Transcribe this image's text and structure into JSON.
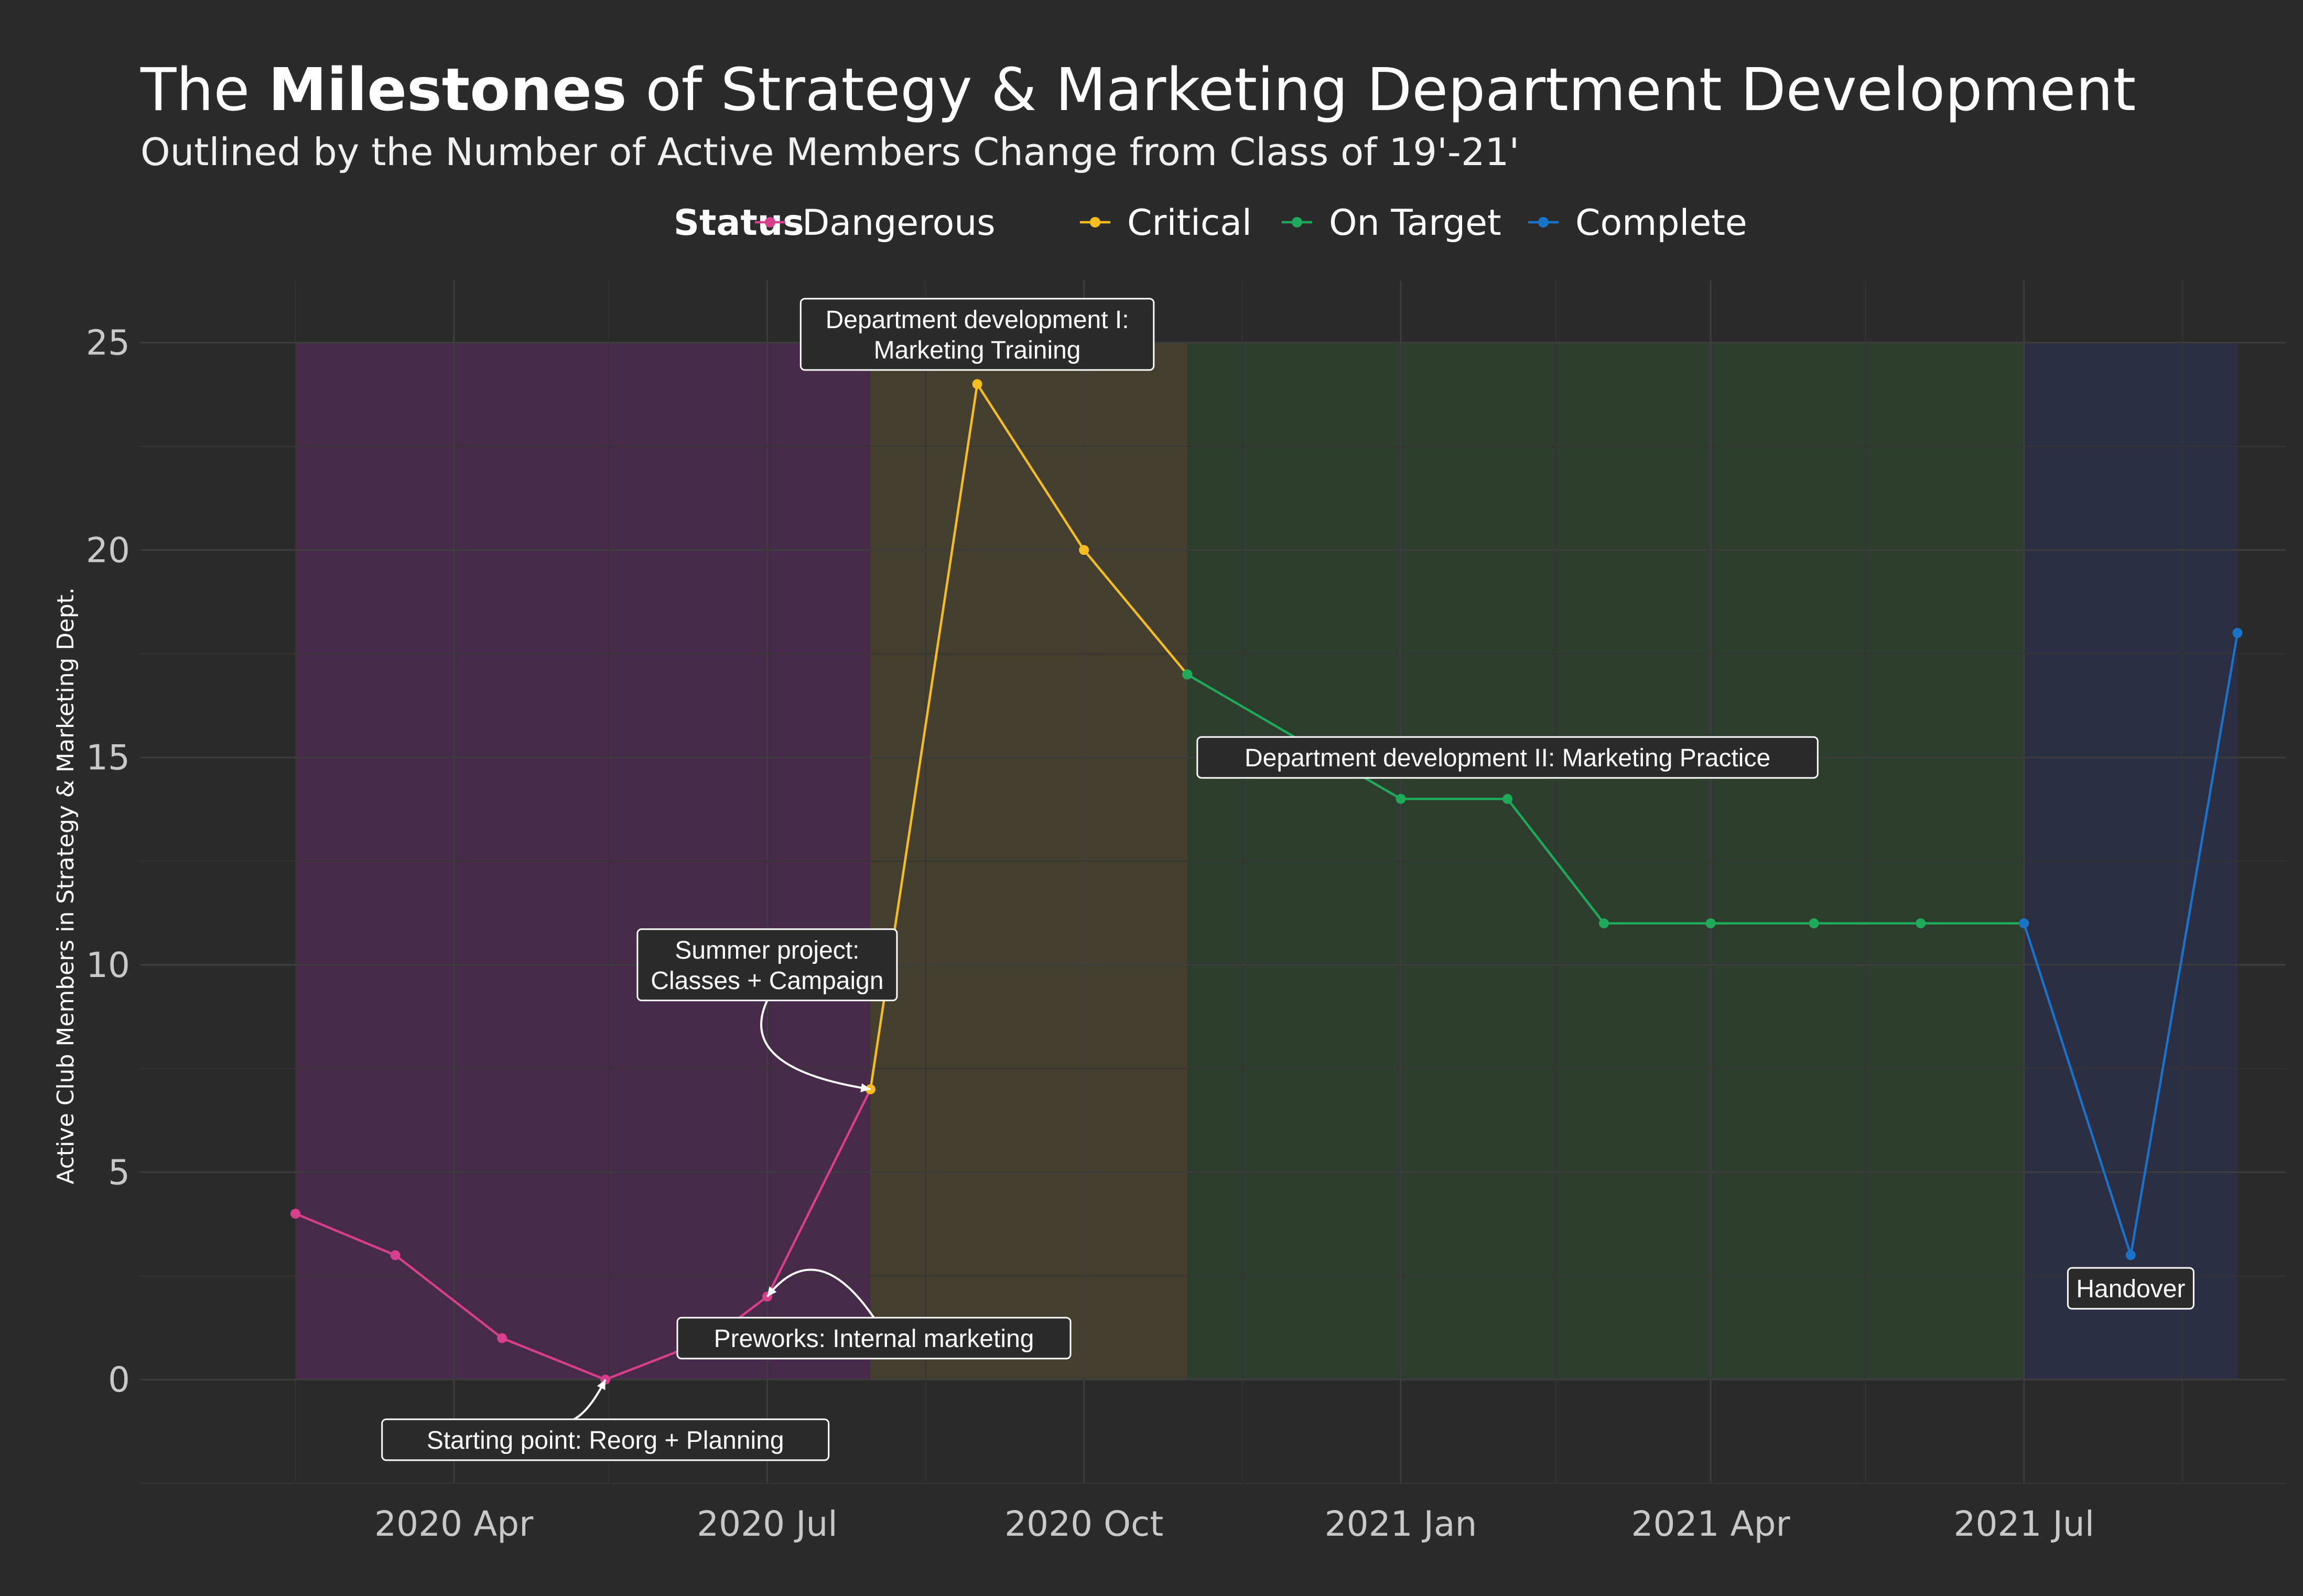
{
  "title": {
    "prefix": "The ",
    "bold": "Milestones",
    "suffix": " of Strategy & Marketing Department Development"
  },
  "subtitle": "Outlined by the Number of Active Members Change from Class of 19'-21'",
  "legend": {
    "title": "Status",
    "placement": "top"
  },
  "chart_data": {
    "type": "line",
    "title": "The Milestones of Strategy & Marketing Department Development",
    "subtitle": "Outlined by the Number of Active Members Change from Class of 19'-21'",
    "xlabel": "",
    "ylabel": "Active Club Members in Strategy & Marketing Dept.",
    "xlim": [
      "2020-01-01",
      "2021-09-15"
    ],
    "ylim": [
      -2.5,
      26.5
    ],
    "x_ticks": [
      {
        "date": "2020-04-01",
        "label": "2020 Apr"
      },
      {
        "date": "2020-07-01",
        "label": "2020 Jul"
      },
      {
        "date": "2020-10-01",
        "label": "2020 Oct"
      },
      {
        "date": "2021-01-01",
        "label": "2021 Jan"
      },
      {
        "date": "2021-04-01",
        "label": "2021 Apr"
      },
      {
        "date": "2021-07-01",
        "label": "2021 Jul"
      }
    ],
    "y_ticks": [
      0,
      5,
      10,
      15,
      20,
      25
    ],
    "grid": true,
    "series": [
      {
        "name": "Dangerous",
        "color": "#d63f8c",
        "points": [
          {
            "x": "2020-02-15",
            "y": 4
          },
          {
            "x": "2020-03-15",
            "y": 3
          },
          {
            "x": "2020-04-15",
            "y": 1
          },
          {
            "x": "2020-05-15",
            "y": 0
          },
          {
            "x": "2020-06-15",
            "y": 1
          },
          {
            "x": "2020-07-01",
            "y": 2
          },
          {
            "x": "2020-07-31",
            "y": 7
          }
        ]
      },
      {
        "name": "Critical",
        "color": "#f6bd1e",
        "points": [
          {
            "x": "2020-07-31",
            "y": 7
          },
          {
            "x": "2020-08-31",
            "y": 24
          },
          {
            "x": "2020-10-01",
            "y": 20
          },
          {
            "x": "2020-10-31",
            "y": 17
          }
        ]
      },
      {
        "name": "On Target",
        "color": "#1faa5a",
        "points": [
          {
            "x": "2020-10-31",
            "y": 17
          },
          {
            "x": "2021-01-01",
            "y": 14
          },
          {
            "x": "2021-02-01",
            "y": 14
          },
          {
            "x": "2021-03-01",
            "y": 11
          },
          {
            "x": "2021-04-01",
            "y": 11
          },
          {
            "x": "2021-05-01",
            "y": 11
          },
          {
            "x": "2021-06-01",
            "y": 11
          },
          {
            "x": "2021-07-01",
            "y": 11
          }
        ]
      },
      {
        "name": "Complete",
        "color": "#1a73c8",
        "points": [
          {
            "x": "2021-07-01",
            "y": 11
          },
          {
            "x": "2021-08-01",
            "y": 3
          },
          {
            "x": "2021-09-01",
            "y": 18
          }
        ]
      }
    ],
    "regions": [
      {
        "status": "Dangerous",
        "from": "2020-02-15",
        "to": "2020-07-31",
        "y_from": 0,
        "y_to": 25,
        "color": "#4a2a4c"
      },
      {
        "status": "Critical",
        "from": "2020-07-31",
        "to": "2020-10-31",
        "y_from": 0,
        "y_to": 25,
        "color": "#474030"
      },
      {
        "status": "On Target",
        "from": "2020-10-31",
        "to": "2021-07-01",
        "y_from": 0,
        "y_to": 25,
        "color": "#2e3f2e"
      },
      {
        "status": "Complete",
        "from": "2021-07-01",
        "to": "2021-09-01",
        "y_from": 0,
        "y_to": 25,
        "color": "#2c2f45"
      }
    ],
    "annotations": [
      {
        "lines": [
          "Department development I:",
          "Marketing Training"
        ],
        "x": "2020-08-31",
        "y": 25.2
      },
      {
        "lines": [
          "Summer project:",
          "Classes + Campaign"
        ],
        "x": "2020-07-01",
        "y": 10,
        "arrow_to": {
          "x": "2020-07-31",
          "y": 7
        }
      },
      {
        "lines": [
          "Preworks: Internal marketing"
        ],
        "x": "2020-08-01",
        "y": 1,
        "arrow_to": {
          "x": "2020-07-01",
          "y": 2
        }
      },
      {
        "lines": [
          "Starting point: Reorg + Planning"
        ],
        "x": "2020-05-15",
        "y": -1.45,
        "arrow_to": {
          "x": "2020-05-15",
          "y": 0
        }
      },
      {
        "lines": [
          "Department development II: Marketing Practice"
        ],
        "x": "2021-02-01",
        "y": 15
      },
      {
        "lines": [
          "Handover"
        ],
        "x": "2021-08-01",
        "y": 2.2
      }
    ]
  }
}
